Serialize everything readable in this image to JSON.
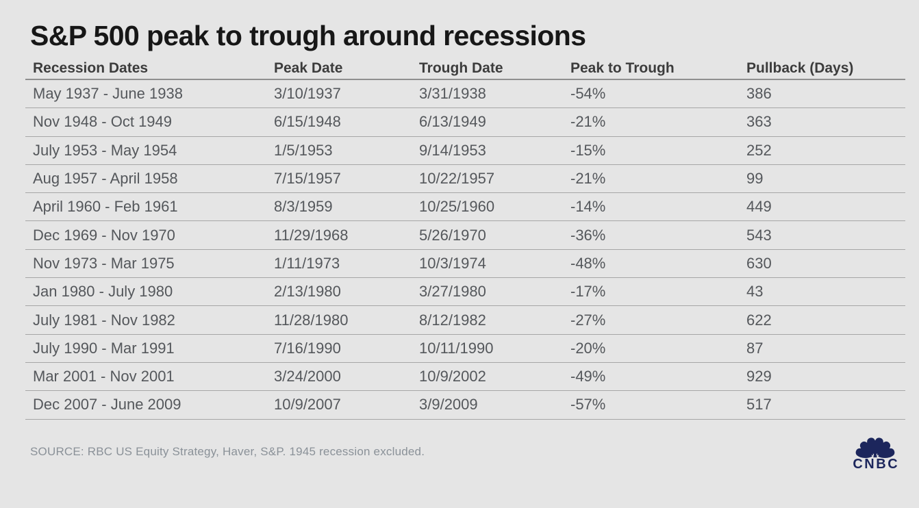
{
  "chart_data": {
    "type": "table",
    "title": "S&P 500 peak to trough around recessions",
    "columns": [
      "Recession Dates",
      "Peak Date",
      "Trough Date",
      "Peak to Trough",
      "Pullback (Days)"
    ],
    "rows": [
      [
        "May 1937 - June 1938",
        "3/10/1937",
        "3/31/1938",
        "-54%",
        "386"
      ],
      [
        "Nov 1948 - Oct 1949",
        "6/15/1948",
        "6/13/1949",
        "-21%",
        "363"
      ],
      [
        "July 1953 - May 1954",
        "1/5/1953",
        "9/14/1953",
        "-15%",
        "252"
      ],
      [
        "Aug 1957 - April 1958",
        "7/15/1957",
        "10/22/1957",
        "-21%",
        "99"
      ],
      [
        "April 1960 - Feb 1961",
        "8/3/1959",
        "10/25/1960",
        "-14%",
        "449"
      ],
      [
        "Dec 1969 - Nov 1970",
        "11/29/1968",
        "5/26/1970",
        "-36%",
        "543"
      ],
      [
        "Nov 1973 - Mar 1975",
        "1/11/1973",
        "10/3/1974",
        "-48%",
        "630"
      ],
      [
        "Jan 1980 - July 1980",
        "2/13/1980",
        "3/27/1980",
        "-17%",
        "43"
      ],
      [
        "July 1981 - Nov 1982",
        "11/28/1980",
        "8/12/1982",
        "-27%",
        "622"
      ],
      [
        "July 1990 - Mar 1991",
        "7/16/1990",
        "10/11/1990",
        "-20%",
        "87"
      ],
      [
        "Mar 2001 - Nov 2001",
        "3/24/2000",
        "10/9/2002",
        "-49%",
        "929"
      ],
      [
        "Dec 2007 - June 2009",
        "10/9/2007",
        "3/9/2009",
        "-57%",
        "517"
      ]
    ],
    "source_note": "SOURCE: RBC US Equity Strategy, Haver, S&P. 1945 recession excluded.",
    "brand": "CNBC",
    "layout_hints": {
      "grid": "horizontal row separators",
      "legend": "none"
    }
  },
  "icons": {
    "peacock": "cnbc-peacock-icon"
  },
  "colors": {
    "page-bg": "#e5e5e5",
    "row-line": "#a6a6a6",
    "header-line": "#8f8f8f",
    "title-text": "#171717",
    "header-text": "#3c3c3c",
    "cell-text": "#54575b",
    "source-text": "#8a9198",
    "logo-navy": "#1c265c"
  }
}
